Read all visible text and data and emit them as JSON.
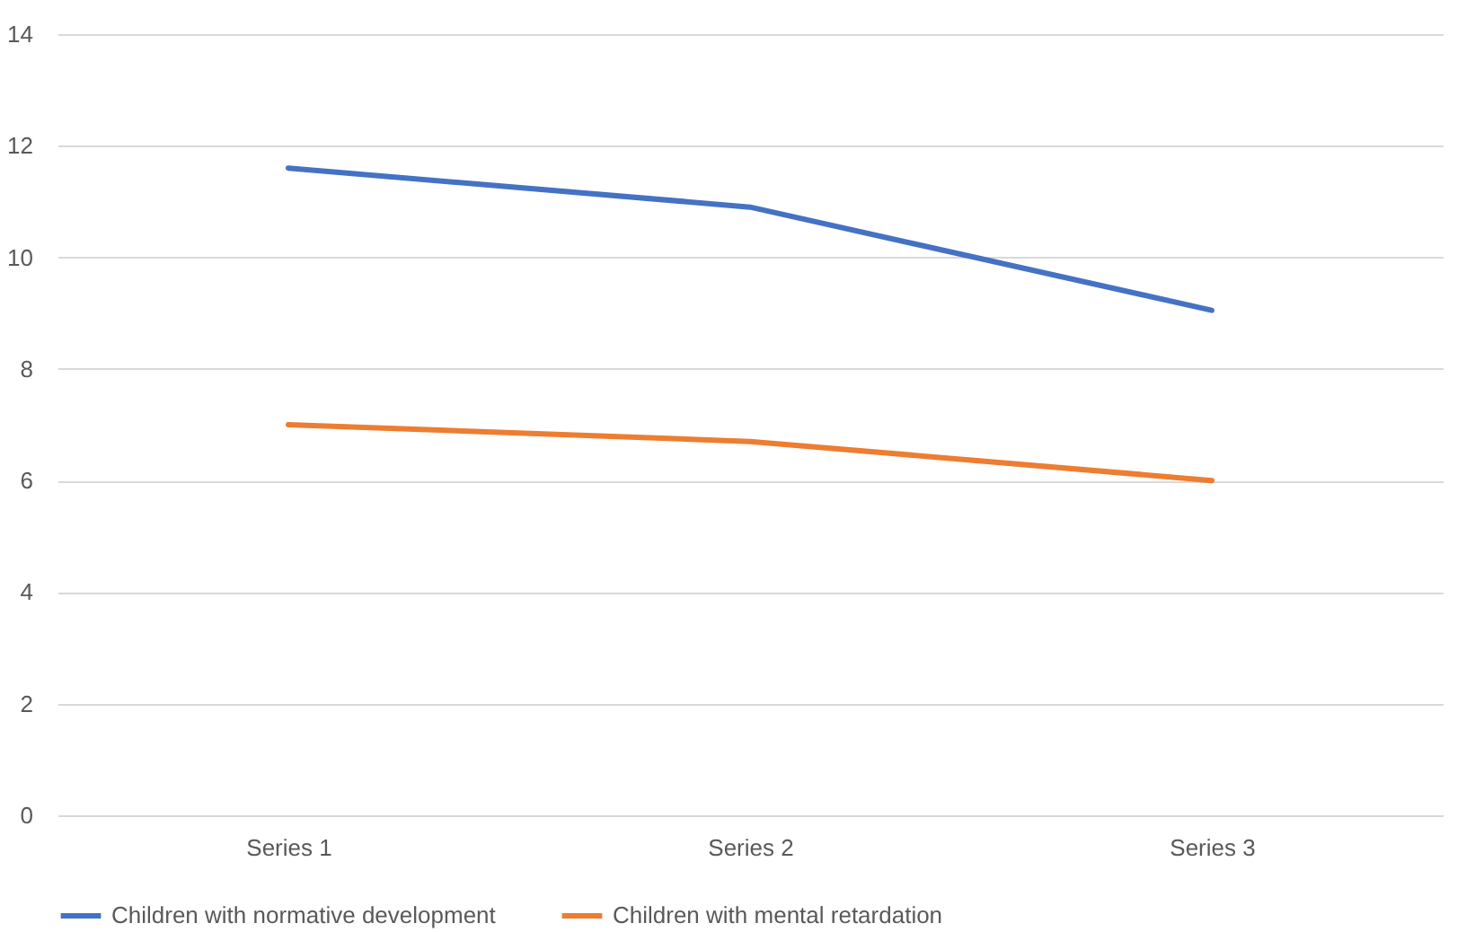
{
  "chart_data": {
    "type": "line",
    "categories": [
      "Series 1",
      "Series 2",
      "Series 3"
    ],
    "series": [
      {
        "name": "Children with normative development",
        "color": "#4472c4",
        "values": [
          11.6,
          10.9,
          9.05
        ]
      },
      {
        "name": "Children with mental retardation",
        "color": "#ed7d31",
        "values": [
          7.0,
          6.7,
          6.0
        ]
      }
    ],
    "ylim": [
      0,
      14
    ],
    "yticks": [
      0,
      2,
      4,
      6,
      8,
      10,
      12,
      14
    ],
    "grid": "y",
    "legend": "bottom"
  }
}
